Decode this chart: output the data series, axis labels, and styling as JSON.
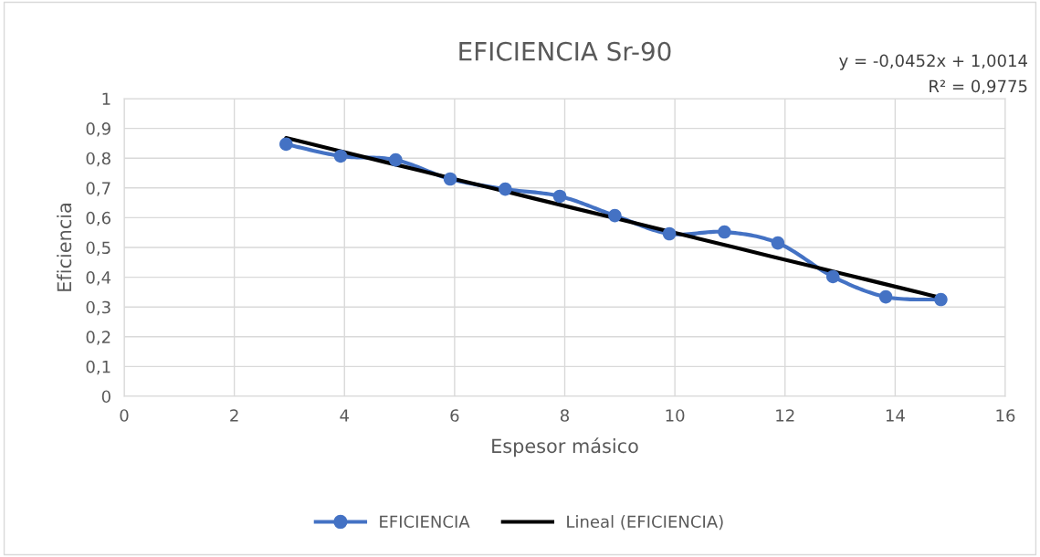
{
  "chart_data": {
    "type": "line",
    "title": "EFICIENCIA Sr-90",
    "xlabel": "Espesor másico",
    "ylabel": "Eficiencia",
    "xlim": [
      0,
      16
    ],
    "xticks": [
      0,
      2,
      4,
      6,
      8,
      10,
      12,
      14,
      16
    ],
    "ylim": [
      0,
      1
    ],
    "yticks": [
      0,
      {
        "value": 0.1,
        "label": "0,1"
      },
      {
        "value": 0.2,
        "label": "0,2"
      },
      {
        "value": 0.3,
        "label": "0,3"
      },
      {
        "value": 0.4,
        "label": "0,4"
      },
      {
        "value": 0.5,
        "label": "0,5"
      },
      {
        "value": 0.6,
        "label": "0,6"
      },
      {
        "value": 0.7,
        "label": "0,7"
      },
      {
        "value": 0.8,
        "label": "0,8"
      },
      {
        "value": 0.9,
        "label": "0,9"
      },
      1
    ],
    "grid": true,
    "legend": "bottom",
    "annotations": [
      "y = -0,0452x + 1,0014",
      "R² = 0,9775"
    ],
    "series": [
      {
        "name": "EFICIENCIA",
        "color": "#4472c4",
        "marker": "circle",
        "x": [
          2.94,
          3.93,
          4.93,
          5.92,
          6.92,
          7.91,
          8.91,
          9.9,
          10.9,
          11.87,
          12.87,
          13.83,
          14.83
        ],
        "values": [
          0.847,
          0.807,
          0.794,
          0.73,
          0.696,
          0.672,
          0.607,
          0.546,
          0.552,
          0.515,
          0.402,
          0.334,
          0.325
        ]
      },
      {
        "name": "Lineal (EFICIENCIA)",
        "color": "#000000",
        "marker": "none",
        "x": [
          2.94,
          14.83
        ],
        "values": [
          0.868,
          0.331
        ]
      }
    ]
  }
}
